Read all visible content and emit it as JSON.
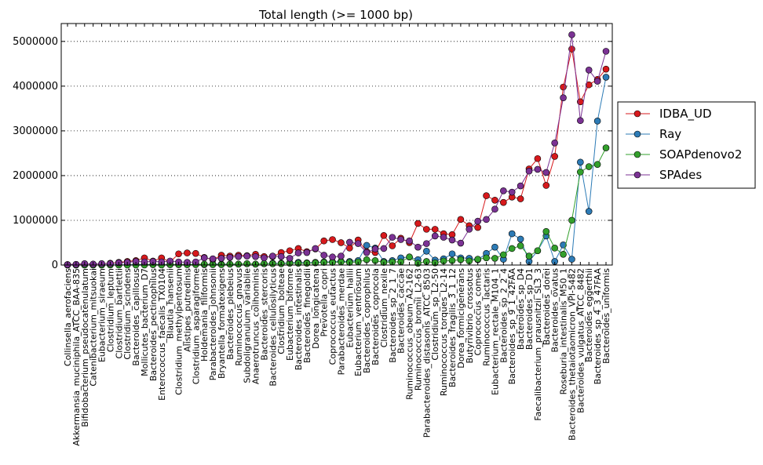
{
  "chart_data": {
    "type": "line",
    "title": "Total length (>= 1000 bp)",
    "xlabel": "",
    "ylabel": "",
    "ylim": [
      0,
      5400000
    ],
    "yticks": [
      0,
      1000000,
      2000000,
      3000000,
      4000000,
      5000000
    ],
    "ytick_labels": [
      "0",
      "1000000",
      "2000000",
      "3000000",
      "4000000",
      "5000000"
    ],
    "grid": "y-dotted",
    "legend_position": "right",
    "categories": [
      "Collinsella_aerofaciens",
      "Akkermansia_muciniphila_ATCC_BAA-835",
      "Bifidobacterium_pseudocatenulatum",
      "Catenibacterium_mitsuokai",
      "Eubacterium_siraeum",
      "Clostridium_leptum",
      "Clostridium_bartlettii",
      "Clostridium_scindens",
      "Bacteroides_capillosus",
      "Mollicutes_bacterium_D7",
      "Bacteroides_pectinophilus",
      "Enterococcus_faecalis_TX0104",
      "Blautia_hansenii",
      "Clostridium_methylpentosum",
      "Alistipes_putredinis",
      "Clostridium_asparagiforme",
      "Holdemania_filiformis",
      "Parabacteroides_johnsonii",
      "Bryantella_formatexigens",
      "Bacteroides_plebeius",
      "Ruminococcus_gnavus",
      "Subdoligranulum_variabile",
      "Anaerotruncus_colihominis",
      "Bacteroides_stercoris",
      "Bacteroides_cellulosilyticus",
      "Clostridium_bolteae",
      "Eubacterium_biforme",
      "Bacteroides_intestinalis",
      "Bacteroides_finegoldii",
      "Dorea_longicatena",
      "Prevotella_copri",
      "Coprococcus_eutactus",
      "Parabacteroides_merdae",
      "Eubacterium_hallii",
      "Eubacterium_ventriosum",
      "Bacteroides_coprophilus",
      "Bacteroides_coprocola",
      "Clostridium_nexile",
      "Bacteroides_sp_2_1_7",
      "Bacteroides_caccae",
      "Ruminococcus_obeum_A2-162",
      "Ruminococcus_bromii_L2-63",
      "Parabacteroides_distasonis_ATCC_8503",
      "Clostridium_sp_L2-50",
      "Ruminococcus_torques_L2-14",
      "Bacteroides_fragilis_3_1_12",
      "Dorea_formicigenerans",
      "Butyrivibrio_crossotus",
      "Coprococcus_comes",
      "Ruminococcus_lactaris",
      "Eubacterium_rectale_M104_1",
      "Bacteroides_sp_2_2_4",
      "Bacteroides_sp_9_1_42FAA",
      "Bacteroides_sp_D4",
      "Bacteroides_sp_D1",
      "Faecalibacterium_prausnitzii_SL3_3",
      "Bacteroides_dorei",
      "Bacteroides_ovatus",
      "Roseburia_intestinalis_M50_1",
      "Bacteroides_thetaiotaomicron_VPI-5482",
      "Bacteroides_vulgatus_ATCC_8482",
      "Bacteroides_eggerthii",
      "Bacteroides_sp_4_3_47FAA",
      "Bacteroides_uniformis"
    ],
    "series": [
      {
        "name": "IDBA_UD",
        "color": "#d7191c",
        "values": [
          10000,
          15000,
          30000,
          20000,
          30000,
          40000,
          60000,
          80000,
          100000,
          160000,
          90000,
          160000,
          70000,
          250000,
          270000,
          260000,
          170000,
          120000,
          220000,
          200000,
          220000,
          210000,
          240000,
          190000,
          190000,
          280000,
          320000,
          370000,
          300000,
          360000,
          540000,
          570000,
          500000,
          380000,
          560000,
          300000,
          280000,
          660000,
          430000,
          600000,
          500000,
          930000,
          800000,
          800000,
          700000,
          680000,
          1020000,
          880000,
          840000,
          1550000,
          1450000,
          1400000,
          1520000,
          1480000,
          2150000,
          2380000,
          1780000,
          2430000,
          3980000,
          4830000,
          3650000,
          4030000,
          4150000,
          4380000
        ]
      },
      {
        "name": "Ray",
        "color": "#2c7bb6",
        "values": [
          0,
          0,
          0,
          0,
          0,
          5000,
          5000,
          5000,
          10000,
          10000,
          10000,
          10000,
          10000,
          10000,
          10000,
          20000,
          10000,
          20000,
          20000,
          20000,
          20000,
          30000,
          20000,
          30000,
          40000,
          40000,
          50000,
          60000,
          50000,
          60000,
          70000,
          70000,
          80000,
          80000,
          100000,
          440000,
          380000,
          80000,
          100000,
          160000,
          180000,
          120000,
          310000,
          110000,
          140000,
          250000,
          160000,
          150000,
          120000,
          260000,
          400000,
          130000,
          700000,
          580000,
          80000,
          320000,
          650000,
          80000,
          450000,
          130000,
          2300000,
          1200000,
          3220000,
          4200000
        ]
      },
      {
        "name": "SOAPdenovo2",
        "color": "#33a02c",
        "values": [
          0,
          0,
          0,
          0,
          0,
          0,
          0,
          0,
          0,
          0,
          10000,
          0,
          10000,
          10000,
          10000,
          10000,
          20000,
          10000,
          10000,
          20000,
          20000,
          30000,
          20000,
          30000,
          30000,
          30000,
          40000,
          40000,
          40000,
          50000,
          60000,
          60000,
          70000,
          60000,
          70000,
          120000,
          100000,
          60000,
          70000,
          70000,
          180000,
          40000,
          80000,
          50000,
          90000,
          100000,
          120000,
          90000,
          130000,
          160000,
          150000,
          230000,
          370000,
          430000,
          200000,
          320000,
          750000,
          380000,
          240000,
          1000000,
          2080000,
          2200000,
          2250000,
          2620000
        ]
      },
      {
        "name": "SPAdes",
        "color": "#7b3294",
        "values": [
          10000,
          15000,
          30000,
          20000,
          30000,
          30000,
          50000,
          60000,
          80000,
          70000,
          80000,
          70000,
          90000,
          70000,
          60000,
          70000,
          160000,
          140000,
          150000,
          170000,
          190000,
          200000,
          190000,
          160000,
          200000,
          190000,
          150000,
          270000,
          280000,
          370000,
          220000,
          180000,
          200000,
          510000,
          480000,
          280000,
          360000,
          370000,
          620000,
          570000,
          540000,
          400000,
          480000,
          650000,
          620000,
          560000,
          490000,
          800000,
          980000,
          1020000,
          1250000,
          1660000,
          1630000,
          1770000,
          2100000,
          2140000,
          2070000,
          2730000,
          3740000,
          5150000,
          3230000,
          4360000,
          4110000,
          4780000
        ]
      }
    ]
  }
}
